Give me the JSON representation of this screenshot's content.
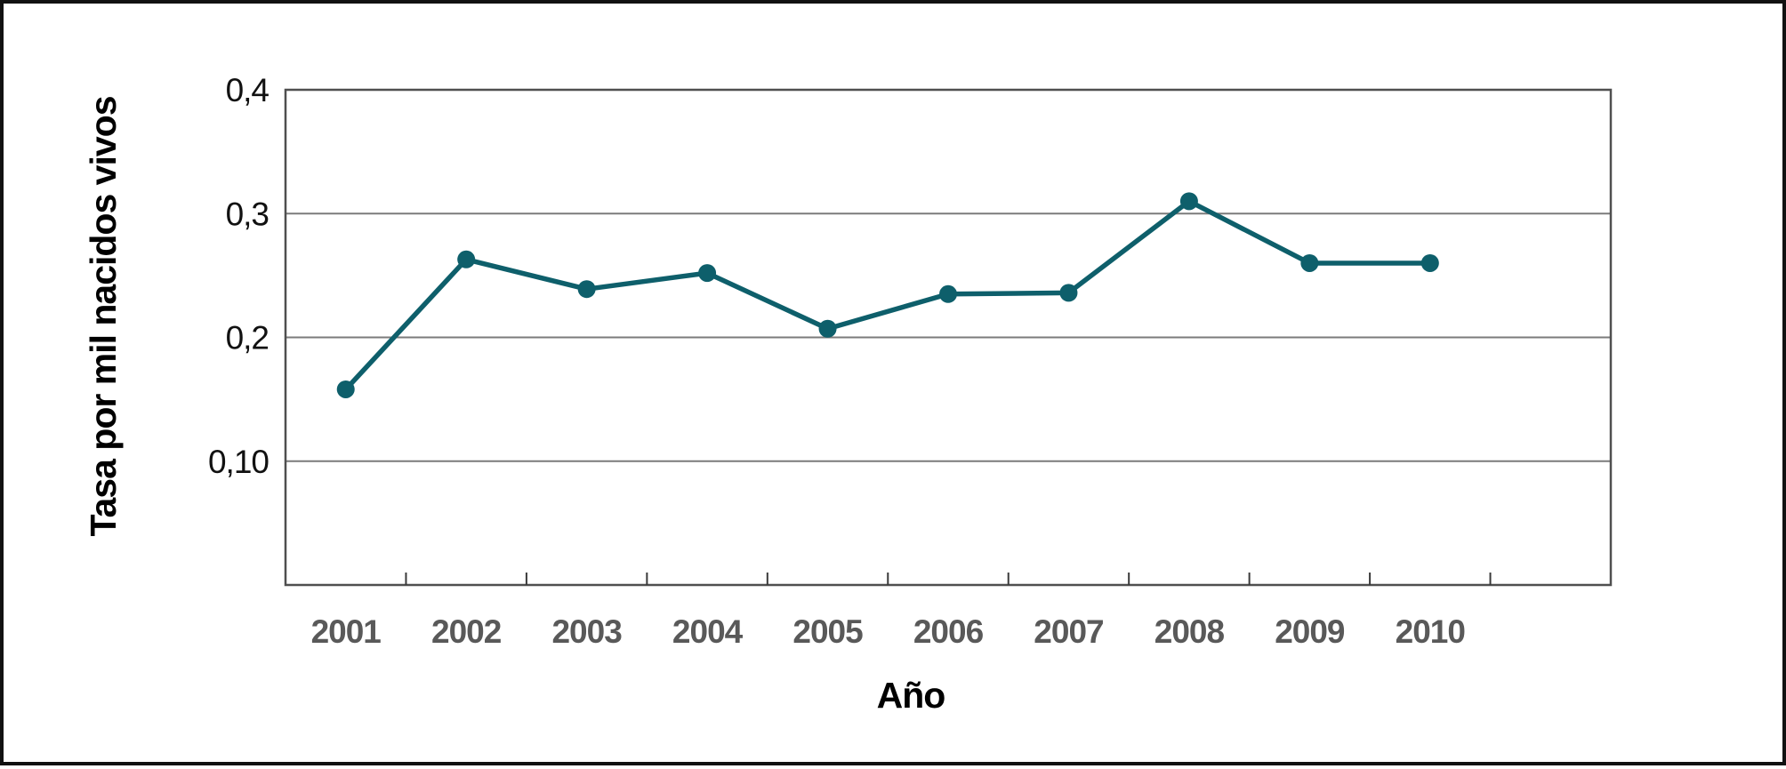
{
  "figure": {
    "background_color": "#ffffff",
    "outer_frame_color": "#111111"
  },
  "chart_data": {
    "type": "line",
    "title": "",
    "xlabel": "Año",
    "ylabel": "Tasa por mil nacidos vivos",
    "categories": [
      "2001",
      "2002",
      "2003",
      "2004",
      "2005",
      "2006",
      "2007",
      "2008",
      "2009",
      "2010"
    ],
    "values": [
      0.158,
      0.263,
      0.239,
      0.252,
      0.207,
      0.235,
      0.236,
      0.31,
      0.26,
      0.26
    ],
    "series_name": "",
    "ylim": [
      0,
      0.4
    ],
    "y_ticks": [
      {
        "value": 0.4,
        "label": "0,4"
      },
      {
        "value": 0.3,
        "label": "0,3"
      },
      {
        "value": 0.2,
        "label": "0,2"
      },
      {
        "value": 0.1,
        "label": "0,10"
      }
    ],
    "grid": "horizontal",
    "legend": "none",
    "marker": "circle",
    "trailing_empty_slots": 1,
    "colors": {
      "line": "#0E5F6B",
      "marker": "#0E5F6B",
      "gridline": "#7b7b7b",
      "plot_border": "#4f4f4f",
      "tick_mark": "#3a3a3a",
      "x_tick_text": "#595959",
      "y_tick_text": "#111111",
      "axis_title_text": "#000000"
    }
  }
}
